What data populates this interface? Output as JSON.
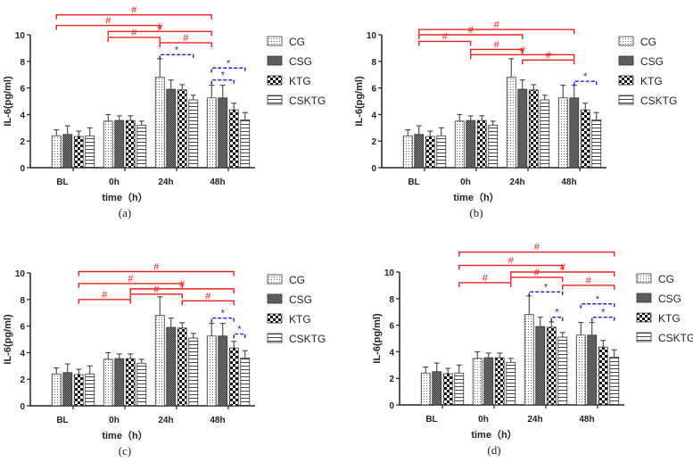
{
  "chart_data": {
    "type": "bar",
    "shared": {
      "categories": [
        "BL",
        "0h",
        "24h",
        "48h"
      ],
      "xlabel": "time（h）",
      "ylabel": "IL-6(pg/ml)",
      "ylim": [
        0,
        10
      ],
      "yticks": [
        0,
        2,
        4,
        6,
        8,
        10
      ],
      "grid": false,
      "legend_placement": "right",
      "series": [
        {
          "name": "CG",
          "pattern": "dots",
          "values": [
            2.4,
            3.5,
            6.8,
            5.25
          ],
          "error_upper": [
            2.85,
            4.0,
            8.2,
            6.2
          ]
        },
        {
          "name": "CSG",
          "pattern": "dense-crosshatch",
          "values": [
            2.5,
            3.55,
            5.9,
            5.25
          ],
          "error_upper": [
            3.15,
            3.9,
            6.6,
            6.2
          ]
        },
        {
          "name": "KTG",
          "pattern": "checkerboard",
          "values": [
            2.35,
            3.55,
            5.85,
            4.35
          ],
          "error_upper": [
            2.75,
            3.9,
            6.25,
            4.85
          ]
        },
        {
          "name": "CSKTG",
          "pattern": "horizontal-lines",
          "values": [
            2.4,
            3.2,
            5.1,
            3.6
          ],
          "error_upper": [
            3.0,
            3.5,
            5.45,
            4.15
          ]
        }
      ],
      "colors": {
        "time_comparison": "#e8231e",
        "group_comparison": "#1f1fd6",
        "bar_outline": "#333333"
      },
      "time_comparison_symbol": "#",
      "group_comparison_symbol": "*"
    },
    "panels": [
      {
        "label": "(a)",
        "focus_series": "CG",
        "time_brackets": [
          [
            "BL",
            "48h",
            11.5
          ],
          [
            "BL",
            "24h",
            10.7
          ],
          [
            "0h",
            "48h",
            10.25
          ],
          [
            "0h",
            "24h",
            9.8
          ],
          [
            "24h",
            "48h",
            9.4
          ]
        ],
        "group_brackets": [
          [
            "24h",
            "CG",
            "CSKTG",
            8.5
          ],
          [
            "48h",
            "CG",
            "KTG",
            6.6
          ],
          [
            "48h",
            "CG",
            "CSKTG",
            7.5
          ]
        ]
      },
      {
        "label": "(b)",
        "focus_series": "CSG",
        "time_brackets": [
          [
            "BL",
            "48h",
            10.4
          ],
          [
            "BL",
            "24h",
            10.0
          ],
          [
            "BL",
            "0h",
            9.5
          ],
          [
            "0h",
            "24h",
            8.9
          ],
          [
            "0h",
            "48h",
            8.5
          ],
          [
            "24h",
            "48h",
            8.1
          ]
        ],
        "group_brackets": [
          [
            "48h",
            "CSG",
            "CSKTG",
            6.5
          ]
        ]
      },
      {
        "label": "(c)",
        "focus_series": "KTG",
        "time_brackets": [
          [
            "BL",
            "48h",
            10.1
          ],
          [
            "BL",
            "24h",
            9.2
          ],
          [
            "0h",
            "48h",
            8.8
          ],
          [
            "0h",
            "24h",
            8.4
          ],
          [
            "BL",
            "0h",
            8.0
          ],
          [
            "24h",
            "48h",
            7.9
          ]
        ],
        "group_brackets": [
          [
            "48h",
            "CG",
            "KTG",
            6.6
          ],
          [
            "48h",
            "KTG",
            "CSKTG",
            5.4
          ]
        ]
      },
      {
        "label": "(d)",
        "focus_series": "CSKTG",
        "time_brackets": [
          [
            "BL",
            "48h",
            11.5
          ],
          [
            "BL",
            "24h",
            10.5
          ],
          [
            "0h",
            "48h",
            10.0
          ],
          [
            "0h",
            "24h",
            9.6
          ],
          [
            "BL",
            "0h",
            9.2
          ],
          [
            "24h",
            "48h",
            9.0
          ]
        ],
        "group_brackets": [
          [
            "24h",
            "CG",
            "CSKTG",
            8.5
          ],
          [
            "24h",
            "KTG",
            "CSKTG",
            6.6
          ],
          [
            "48h",
            "CG",
            "CSKTG",
            7.6
          ],
          [
            "48h",
            "CSG",
            "CSKTG",
            6.6
          ]
        ]
      }
    ]
  }
}
